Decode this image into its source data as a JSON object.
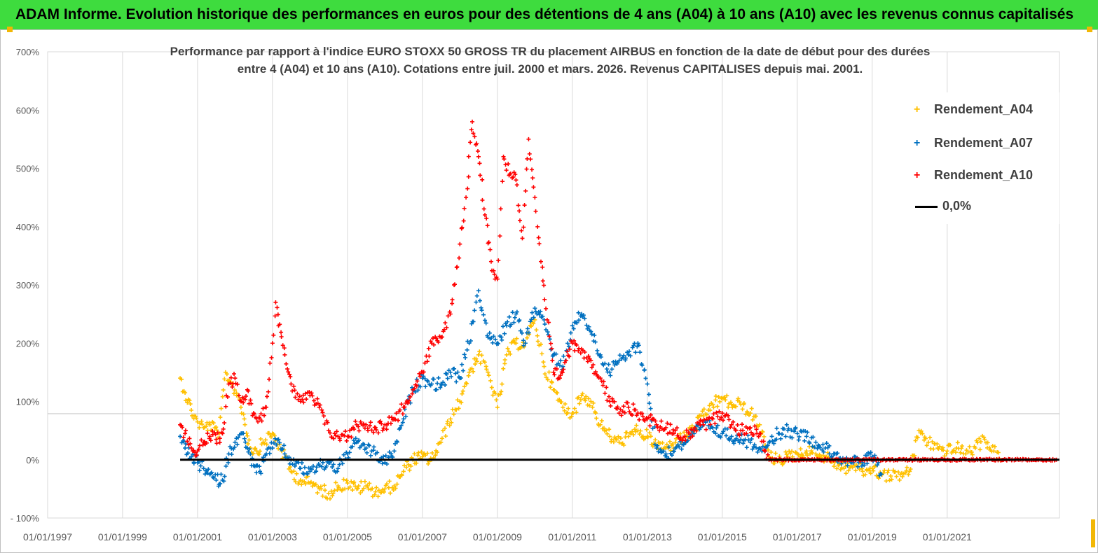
{
  "banner": {
    "title": "ADAM Informe. Evolution historique des performances en euros pour des détentions de 4 ans (A04) à 10 ans (A10) avec les revenus connus capitalisés"
  },
  "colors": {
    "banner_bg": "#3edc3e",
    "a04": "#ffc000",
    "a07": "#0070c0",
    "a10": "#ff0000",
    "zero_line": "#000000"
  },
  "chart_data": {
    "type": "scatter",
    "title_line1": "Performance par rapport à l'indice EURO STOXX 50 GROSS TR  du placement AIRBUS en fonction de la date de début pour des durées",
    "title_line2": "entre 4 (A04) et 10 ans (A10).  Cotations entre juil. 2000 et mars. 2026. Revenus CAPITALISES depuis mai. 2001.",
    "xlabel": "",
    "ylabel": "",
    "xlim": [
      "1997-01-01",
      "2023-12-31"
    ],
    "ylim": [
      -100,
      700
    ],
    "y_ticks": [
      "700%",
      "600%",
      "500%",
      "400%",
      "300%",
      "200%",
      "100%",
      "0%",
      "- 100%"
    ],
    "y_tick_values": [
      700,
      600,
      500,
      400,
      300,
      200,
      100,
      0,
      -100
    ],
    "x_ticks": [
      "01/01/1997",
      "01/01/1999",
      "01/01/2001",
      "01/01/2003",
      "01/01/2005",
      "01/01/2007",
      "01/01/2009",
      "01/01/2011",
      "01/01/2013",
      "01/01/2015",
      "01/01/2017",
      "01/01/2019",
      "01/01/2021"
    ],
    "grid": "vertical",
    "legend_position": "top-right",
    "marker": "+",
    "series": [
      {
        "name": "Rendement_A04",
        "color": "#ffc000",
        "points": [
          [
            "2000-07-15",
            140
          ],
          [
            "2000-09-01",
            115
          ],
          [
            "2000-11-01",
            85
          ],
          [
            "2001-01-01",
            65
          ],
          [
            "2001-03-01",
            55
          ],
          [
            "2001-05-01",
            60
          ],
          [
            "2001-08-01",
            45
          ],
          [
            "2001-10-01",
            150
          ],
          [
            "2001-12-01",
            130
          ],
          [
            "2002-02-01",
            110
          ],
          [
            "2002-04-01",
            70
          ],
          [
            "2002-06-01",
            20
          ],
          [
            "2002-08-01",
            15
          ],
          [
            "2002-10-01",
            30
          ],
          [
            "2003-01-01",
            45
          ],
          [
            "2003-04-01",
            15
          ],
          [
            "2003-07-01",
            -20
          ],
          [
            "2003-10-01",
            -35
          ],
          [
            "2004-01-01",
            -40
          ],
          [
            "2004-04-01",
            -50
          ],
          [
            "2004-07-01",
            -58
          ],
          [
            "2004-10-01",
            -45
          ],
          [
            "2005-01-01",
            -40
          ],
          [
            "2005-04-01",
            -50
          ],
          [
            "2005-07-01",
            -45
          ],
          [
            "2005-10-01",
            -55
          ],
          [
            "2006-01-01",
            -50
          ],
          [
            "2006-04-01",
            -45
          ],
          [
            "2006-07-01",
            -20
          ],
          [
            "2006-10-01",
            0
          ],
          [
            "2007-01-01",
            5
          ],
          [
            "2007-04-01",
            0
          ],
          [
            "2007-07-01",
            30
          ],
          [
            "2007-10-01",
            70
          ],
          [
            "2008-01-01",
            100
          ],
          [
            "2008-04-01",
            150
          ],
          [
            "2008-07-01",
            180
          ],
          [
            "2008-10-01",
            150
          ],
          [
            "2009-01-01",
            90
          ],
          [
            "2009-04-01",
            180
          ],
          [
            "2009-07-01",
            200
          ],
          [
            "2009-10-01",
            200
          ],
          [
            "2010-01-01",
            240
          ],
          [
            "2010-04-01",
            160
          ],
          [
            "2010-07-01",
            120
          ],
          [
            "2010-10-01",
            90
          ],
          [
            "2011-01-01",
            80
          ],
          [
            "2011-04-01",
            110
          ],
          [
            "2011-07-01",
            100
          ],
          [
            "2011-10-01",
            60
          ],
          [
            "2012-01-01",
            40
          ],
          [
            "2012-04-01",
            30
          ],
          [
            "2012-07-01",
            40
          ],
          [
            "2012-10-01",
            50
          ],
          [
            "2013-01-01",
            40
          ],
          [
            "2013-04-01",
            25
          ],
          [
            "2013-07-01",
            20
          ],
          [
            "2013-10-01",
            30
          ],
          [
            "2014-01-01",
            40
          ],
          [
            "2014-04-01",
            55
          ],
          [
            "2014-07-01",
            75
          ],
          [
            "2014-10-01",
            95
          ],
          [
            "2015-01-01",
            105
          ],
          [
            "2015-04-01",
            95
          ],
          [
            "2015-07-01",
            95
          ],
          [
            "2015-10-01",
            80
          ],
          [
            "2016-01-01",
            60
          ],
          [
            "2016-04-01",
            5
          ],
          [
            "2016-07-01",
            0
          ],
          [
            "2016-10-01",
            5
          ],
          [
            "2017-01-01",
            10
          ],
          [
            "2017-04-01",
            15
          ],
          [
            "2017-07-01",
            10
          ],
          [
            "2017-10-01",
            5
          ],
          [
            "2018-01-01",
            -5
          ],
          [
            "2018-04-01",
            -15
          ],
          [
            "2018-07-01",
            -10
          ],
          [
            "2018-10-01",
            -20
          ],
          [
            "2019-01-01",
            -15
          ],
          [
            "2019-04-01",
            -25
          ],
          [
            "2019-07-01",
            -28
          ],
          [
            "2019-10-01",
            -25
          ],
          [
            "2020-01-01",
            -20
          ],
          [
            "2020-04-01",
            50
          ],
          [
            "2020-07-01",
            30
          ],
          [
            "2020-10-01",
            20
          ],
          [
            "2021-01-01",
            15
          ],
          [
            "2021-04-01",
            20
          ],
          [
            "2021-07-01",
            10
          ],
          [
            "2021-10-01",
            20
          ],
          [
            "2022-01-01",
            35
          ],
          [
            "2022-04-01",
            15
          ],
          [
            "2022-06-01",
            0
          ]
        ]
      },
      {
        "name": "Rendement_A07",
        "color": "#0070c0",
        "points": [
          [
            "2000-07-15",
            40
          ],
          [
            "2000-09-01",
            20
          ],
          [
            "2000-11-01",
            5
          ],
          [
            "2001-01-01",
            -5
          ],
          [
            "2001-03-01",
            -15
          ],
          [
            "2001-05-01",
            -25
          ],
          [
            "2001-07-01",
            -35
          ],
          [
            "2001-09-01",
            -35
          ],
          [
            "2001-11-01",
            10
          ],
          [
            "2002-01-01",
            30
          ],
          [
            "2002-03-01",
            45
          ],
          [
            "2002-05-01",
            20
          ],
          [
            "2002-07-01",
            -10
          ],
          [
            "2002-09-01",
            -20
          ],
          [
            "2002-11-01",
            10
          ],
          [
            "2003-01-01",
            20
          ],
          [
            "2003-03-01",
            35
          ],
          [
            "2003-05-01",
            10
          ],
          [
            "2003-07-01",
            0
          ],
          [
            "2003-10-01",
            -15
          ],
          [
            "2004-01-01",
            -20
          ],
          [
            "2004-04-01",
            -10
          ],
          [
            "2004-07-01",
            -5
          ],
          [
            "2004-10-01",
            -15
          ],
          [
            "2005-01-01",
            10
          ],
          [
            "2005-04-01",
            30
          ],
          [
            "2005-07-01",
            20
          ],
          [
            "2005-10-01",
            10
          ],
          [
            "2006-01-01",
            -5
          ],
          [
            "2006-04-01",
            15
          ],
          [
            "2006-07-01",
            70
          ],
          [
            "2006-10-01",
            120
          ],
          [
            "2007-01-01",
            140
          ],
          [
            "2007-04-01",
            130
          ],
          [
            "2007-07-01",
            130
          ],
          [
            "2007-10-01",
            150
          ],
          [
            "2008-01-01",
            140
          ],
          [
            "2008-04-01",
            200
          ],
          [
            "2008-07-01",
            290
          ],
          [
            "2008-10-01",
            210
          ],
          [
            "2009-01-01",
            200
          ],
          [
            "2009-04-01",
            230
          ],
          [
            "2009-07-01",
            250
          ],
          [
            "2009-10-01",
            200
          ],
          [
            "2010-01-01",
            260
          ],
          [
            "2010-04-01",
            240
          ],
          [
            "2010-07-01",
            180
          ],
          [
            "2010-10-01",
            160
          ],
          [
            "2011-01-01",
            230
          ],
          [
            "2011-04-01",
            250
          ],
          [
            "2011-07-01",
            220
          ],
          [
            "2011-10-01",
            180
          ],
          [
            "2012-01-01",
            150
          ],
          [
            "2012-04-01",
            170
          ],
          [
            "2012-07-01",
            180
          ],
          [
            "2012-10-01",
            200
          ],
          [
            "2013-01-01",
            130
          ],
          [
            "2013-04-01",
            20
          ],
          [
            "2013-07-01",
            10
          ],
          [
            "2013-10-01",
            20
          ],
          [
            "2014-01-01",
            30
          ],
          [
            "2014-04-01",
            45
          ],
          [
            "2014-07-01",
            60
          ],
          [
            "2014-10-01",
            55
          ],
          [
            "2015-01-01",
            45
          ],
          [
            "2015-04-01",
            40
          ],
          [
            "2015-07-01",
            35
          ],
          [
            "2015-10-01",
            30
          ],
          [
            "2016-01-01",
            20
          ],
          [
            "2016-04-01",
            30
          ],
          [
            "2016-07-01",
            45
          ],
          [
            "2016-10-01",
            50
          ],
          [
            "2017-01-01",
            45
          ],
          [
            "2017-04-01",
            40
          ],
          [
            "2017-07-01",
            30
          ],
          [
            "2017-10-01",
            20
          ],
          [
            "2018-01-01",
            10
          ],
          [
            "2018-04-01",
            0
          ],
          [
            "2018-07-01",
            -5
          ],
          [
            "2018-10-01",
            -5
          ],
          [
            "2019-01-01",
            5
          ],
          [
            "2019-04-01",
            -25
          ]
        ]
      },
      {
        "name": "Rendement_A10",
        "color": "#ff0000",
        "points": [
          [
            "2000-07-15",
            60
          ],
          [
            "2000-09-01",
            45
          ],
          [
            "2000-11-01",
            20
          ],
          [
            "2001-01-01",
            15
          ],
          [
            "2001-03-01",
            30
          ],
          [
            "2001-05-01",
            40
          ],
          [
            "2001-07-01",
            35
          ],
          [
            "2001-09-01",
            45
          ],
          [
            "2001-11-01",
            130
          ],
          [
            "2002-01-01",
            140
          ],
          [
            "2002-03-01",
            100
          ],
          [
            "2002-05-01",
            120
          ],
          [
            "2002-07-01",
            80
          ],
          [
            "2002-09-01",
            70
          ],
          [
            "2002-11-01",
            90
          ],
          [
            "2003-01-01",
            200
          ],
          [
            "2003-02-01",
            270
          ],
          [
            "2003-03-01",
            230
          ],
          [
            "2003-05-01",
            180
          ],
          [
            "2003-07-01",
            130
          ],
          [
            "2003-10-01",
            100
          ],
          [
            "2004-01-01",
            110
          ],
          [
            "2004-04-01",
            90
          ],
          [
            "2004-07-01",
            50
          ],
          [
            "2004-10-01",
            40
          ],
          [
            "2005-01-01",
            40
          ],
          [
            "2005-04-01",
            60
          ],
          [
            "2005-07-01",
            60
          ],
          [
            "2005-10-01",
            55
          ],
          [
            "2006-01-01",
            60
          ],
          [
            "2006-04-01",
            70
          ],
          [
            "2006-07-01",
            90
          ],
          [
            "2006-10-01",
            120
          ],
          [
            "2007-01-01",
            150
          ],
          [
            "2007-04-01",
            200
          ],
          [
            "2007-07-01",
            210
          ],
          [
            "2007-10-01",
            250
          ],
          [
            "2008-01-01",
            370
          ],
          [
            "2008-03-01",
            450
          ],
          [
            "2008-05-01",
            580
          ],
          [
            "2008-07-01",
            520
          ],
          [
            "2008-09-01",
            420
          ],
          [
            "2008-11-01",
            340
          ],
          [
            "2009-01-01",
            310
          ],
          [
            "2009-03-01",
            520
          ],
          [
            "2009-05-01",
            490
          ],
          [
            "2009-07-01",
            480
          ],
          [
            "2009-09-01",
            380
          ],
          [
            "2009-11-01",
            550
          ],
          [
            "2010-01-01",
            450
          ],
          [
            "2010-03-01",
            340
          ],
          [
            "2010-05-01",
            240
          ],
          [
            "2010-07-01",
            150
          ],
          [
            "2010-09-01",
            140
          ],
          [
            "2010-11-01",
            170
          ],
          [
            "2011-01-01",
            200
          ],
          [
            "2011-04-01",
            190
          ],
          [
            "2011-07-01",
            170
          ],
          [
            "2011-10-01",
            140
          ],
          [
            "2012-01-01",
            100
          ],
          [
            "2012-04-01",
            80
          ],
          [
            "2012-07-01",
            90
          ],
          [
            "2012-10-01",
            80
          ],
          [
            "2013-01-01",
            70
          ],
          [
            "2013-04-01",
            60
          ],
          [
            "2013-07-01",
            55
          ],
          [
            "2013-10-01",
            50
          ],
          [
            "2014-01-01",
            40
          ],
          [
            "2014-04-01",
            50
          ],
          [
            "2014-07-01",
            60
          ],
          [
            "2014-10-01",
            70
          ],
          [
            "2015-01-01",
            80
          ],
          [
            "2015-04-01",
            60
          ],
          [
            "2015-07-01",
            50
          ],
          [
            "2015-10-01",
            55
          ],
          [
            "2016-01-01",
            45
          ],
          [
            "2016-04-01",
            0
          ],
          [
            "2017-01-01",
            0
          ],
          [
            "2018-01-01",
            0
          ],
          [
            "2019-01-01",
            0
          ],
          [
            "2020-01-01",
            0
          ],
          [
            "2021-01-01",
            0
          ],
          [
            "2022-01-01",
            0
          ],
          [
            "2023-12-01",
            0
          ]
        ]
      }
    ],
    "reference_line": {
      "name": "0,0%",
      "value": 0,
      "from": "2000-07-15",
      "to": "2023-12-31"
    }
  }
}
